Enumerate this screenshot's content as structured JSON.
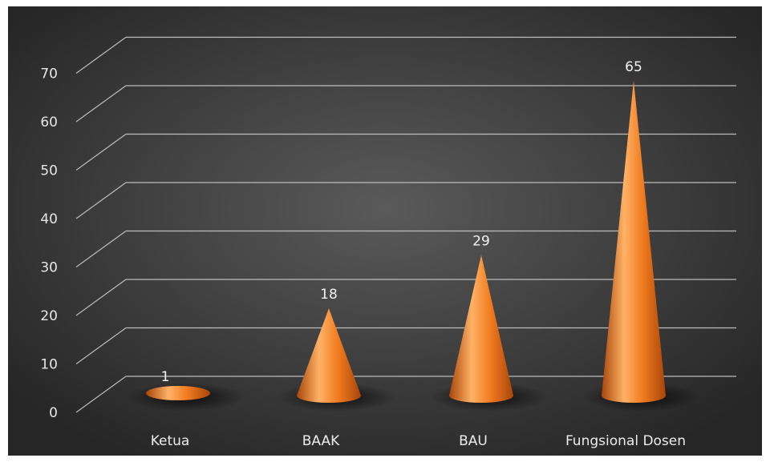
{
  "chart_data": {
    "type": "bar",
    "shape": "cone",
    "categories": [
      "Ketua",
      "BAAK",
      "BAU",
      "Fungsional Dosen"
    ],
    "values": [
      1,
      18,
      29,
      65
    ],
    "data_labels": [
      "1",
      "18",
      "29",
      "65"
    ],
    "y_ticks": [
      "0",
      "10",
      "20",
      "30",
      "40",
      "50",
      "60",
      "70"
    ],
    "ylim": [
      0,
      70
    ],
    "grid": true,
    "legend": "none",
    "colors": {
      "background_center": "#5a5a5a",
      "background_edge": "#262626",
      "cone_light": "#ffb266",
      "cone_mid": "#f07a1e",
      "cone_dark": "#a8460a",
      "gridline": "#bdbdbd"
    }
  }
}
